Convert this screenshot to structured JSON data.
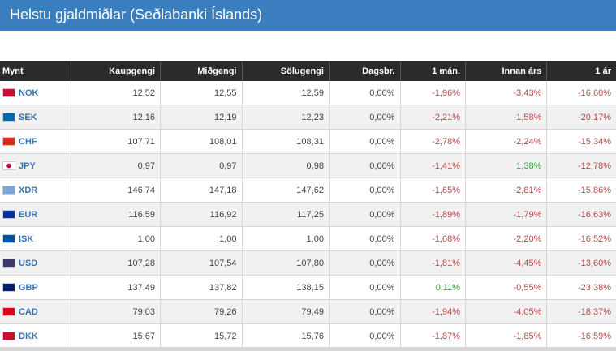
{
  "title": "Helstu gjaldmiðlar (Seðlabanki Íslands)",
  "columns": [
    "Mynt",
    "Kaupgengi",
    "Miðgengi",
    "Sölugengi",
    "Dagsbr.",
    "1 mán.",
    "Innan árs",
    "1 ár"
  ],
  "colors": {
    "header_bar": "#3a7ebf",
    "table_header": "#2b2b2b",
    "negative": "#b54a4a",
    "positive": "#3d9a3d",
    "currency_link": "#3a74b0"
  },
  "rows": [
    {
      "code": "NOK",
      "flag": "#c8102e",
      "cells": [
        "12,52",
        "12,55",
        "12,59",
        "0,00%",
        "-1,96%",
        "-3,43%",
        "-16,60%"
      ]
    },
    {
      "code": "SEK",
      "flag": "#006aa7",
      "cells": [
        "12,16",
        "12,19",
        "12,23",
        "0,00%",
        "-2,21%",
        "-1,58%",
        "-20,17%"
      ]
    },
    {
      "code": "CHF",
      "flag": "#d52b1e",
      "cells": [
        "107,71",
        "108,01",
        "108,31",
        "0,00%",
        "-2,78%",
        "-2,24%",
        "-15,34%"
      ]
    },
    {
      "code": "JPY",
      "flag": "#ffffff",
      "cells": [
        "0,97",
        "0,97",
        "0,98",
        "0,00%",
        "-1,41%",
        "1,38%",
        "-12,78%"
      ]
    },
    {
      "code": "XDR",
      "flag": "#7aa6d6",
      "cells": [
        "146,74",
        "147,18",
        "147,62",
        "0,00%",
        "-1,65%",
        "-2,81%",
        "-15,86%"
      ]
    },
    {
      "code": "EUR",
      "flag": "#003399",
      "cells": [
        "116,59",
        "116,92",
        "117,25",
        "0,00%",
        "-1,89%",
        "-1,79%",
        "-16,63%"
      ]
    },
    {
      "code": "ISK",
      "flag": "#02529c",
      "cells": [
        "1,00",
        "1,00",
        "1,00",
        "0,00%",
        "-1,68%",
        "-2,20%",
        "-16,52%"
      ]
    },
    {
      "code": "USD",
      "flag": "#3c3b6e",
      "cells": [
        "107,28",
        "107,54",
        "107,80",
        "0,00%",
        "-1,81%",
        "-4,45%",
        "-13,60%"
      ]
    },
    {
      "code": "GBP",
      "flag": "#012169",
      "cells": [
        "137,49",
        "137,82",
        "138,15",
        "0,00%",
        "0,11%",
        "-0,55%",
        "-23,38%"
      ]
    },
    {
      "code": "CAD",
      "flag": "#d80621",
      "cells": [
        "79,03",
        "79,26",
        "79,49",
        "0,00%",
        "-1,94%",
        "-4,05%",
        "-18,37%"
      ]
    },
    {
      "code": "DKK",
      "flag": "#c8102e",
      "cells": [
        "15,67",
        "15,72",
        "15,76",
        "0,00%",
        "-1,87%",
        "-1,85%",
        "-16,59%"
      ]
    }
  ]
}
